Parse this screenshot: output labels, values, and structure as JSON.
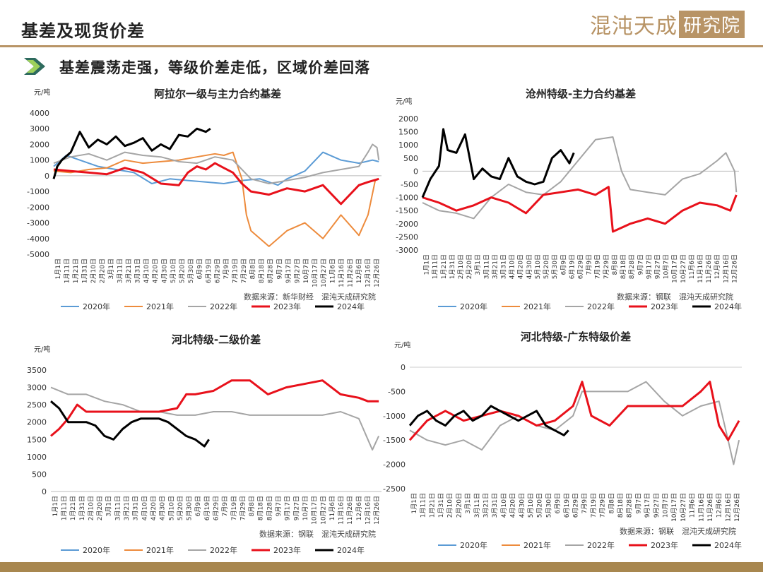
{
  "header": {
    "title": "基差及现货价差",
    "brand_part1": "混沌天成",
    "brand_part2": "研究院",
    "subtitle": "基差震荡走强，等级价差走低，区域价差回落"
  },
  "colors": {
    "2020年": "#5b9bd5",
    "2021年": "#ed8b3c",
    "2022年": "#a5a5a5",
    "2023年": "#e8111b",
    "2024年": "#000000",
    "accent": "#b89466"
  },
  "chart_data": [
    {
      "type": "line",
      "title": "阿拉尔一级与主力合约基差",
      "unit": "元/吨",
      "ylim": [
        -5000,
        4000
      ],
      "yticks": [
        4000,
        3000,
        2000,
        1000,
        0,
        -1000,
        -2000,
        -3000,
        -4000,
        -5000
      ],
      "xticks": [
        "1月1日",
        "1月11日",
        "1月21日",
        "1月31日",
        "2月10日",
        "2月20日",
        "3月1日",
        "3月11日",
        "3月21日",
        "3月31日",
        "4月10日",
        "4月20日",
        "4月30日",
        "5月10日",
        "5月20日",
        "5月30日",
        "6月9日",
        "6月19日",
        "6月29日",
        "7月9日",
        "7月19日",
        "7月29日",
        "8月8日",
        "8月18日",
        "8月28日",
        "9月7日",
        "9月17日",
        "9月27日",
        "10月7日",
        "10月17日",
        "10月27日",
        "11月6日",
        "11月16日",
        "11月26日",
        "12月6日",
        "12月16日",
        "12月26日"
      ],
      "source": "数据来源：新华财经　混沌天成研究院",
      "series": [
        {
          "name": "2020年",
          "x": [
            1,
            15,
            30,
            50,
            70,
            90,
            110,
            130,
            150,
            170,
            190,
            210,
            230,
            250,
            260,
            280,
            300,
            320,
            340,
            355,
            362
          ],
          "y": [
            600,
            1300,
            1000,
            600,
            400,
            200,
            -500,
            -200,
            -300,
            -400,
            -500,
            -300,
            -200,
            -600,
            -200,
            300,
            1500,
            1000,
            800,
            1000,
            900
          ]
        },
        {
          "name": "2021年",
          "x": [
            1,
            20,
            40,
            60,
            80,
            100,
            120,
            140,
            160,
            180,
            190,
            200,
            210,
            215,
            220,
            240,
            260,
            280,
            300,
            320,
            340,
            350,
            358,
            362
          ],
          "y": [
            300,
            200,
            400,
            500,
            1000,
            800,
            900,
            1000,
            1200,
            1400,
            1300,
            1500,
            -200,
            -2500,
            -3500,
            -4500,
            -3500,
            -3000,
            -4000,
            -2500,
            -3800,
            -2500,
            -300,
            -200
          ]
        },
        {
          "name": "2022年",
          "x": [
            1,
            20,
            40,
            60,
            80,
            100,
            120,
            140,
            160,
            180,
            200,
            220,
            240,
            260,
            280,
            300,
            320,
            340,
            350,
            355,
            360,
            362
          ],
          "y": [
            800,
            1200,
            1400,
            1000,
            1500,
            1300,
            1200,
            900,
            800,
            1200,
            1000,
            -200,
            -500,
            -300,
            -100,
            200,
            400,
            600,
            1500,
            2000,
            1800,
            1000
          ]
        },
        {
          "name": "2023年",
          "x": [
            1,
            20,
            40,
            60,
            80,
            100,
            120,
            140,
            150,
            160,
            170,
            180,
            190,
            200,
            210,
            220,
            240,
            260,
            280,
            300,
            320,
            340,
            350,
            362
          ],
          "y": [
            400,
            300,
            200,
            100,
            500,
            200,
            -500,
            -600,
            200,
            600,
            400,
            800,
            500,
            200,
            -500,
            -1000,
            -1200,
            -800,
            -1000,
            -600,
            -1800,
            -600,
            -400,
            -200
          ]
        },
        {
          "name": "2024年",
          "x": [
            1,
            5,
            10,
            20,
            30,
            40,
            50,
            60,
            70,
            80,
            90,
            100,
            110,
            120,
            130,
            140,
            150,
            160,
            170,
            175
          ],
          "y": [
            -200,
            600,
            1000,
            1500,
            2800,
            1800,
            2300,
            2000,
            2500,
            1900,
            2100,
            2400,
            1600,
            2000,
            1700,
            2600,
            2500,
            3000,
            2800,
            3000
          ]
        }
      ]
    },
    {
      "type": "line",
      "title": "沧州特级-主力合约基差",
      "unit": "元/吨",
      "ylim": [
        -3000,
        2000
      ],
      "yticks": [
        2000,
        1500,
        1000,
        500,
        0,
        -500,
        -1000,
        -1500,
        -2000,
        -2500,
        -3000
      ],
      "xticks": [
        "1月1日",
        "1月11日",
        "1月21日",
        "1月31日",
        "2月10日",
        "2月20日",
        "3月1日",
        "3月11日",
        "3月21日",
        "3月31日",
        "4月10日",
        "4月20日",
        "4月30日",
        "5月10日",
        "5月20日",
        "5月30日",
        "6月9日",
        "6月19日",
        "6月29日",
        "7月9日",
        "7月19日",
        "7月29日",
        "8月8日",
        "8月18日",
        "8月28日",
        "9月7日",
        "9月17日",
        "9月27日",
        "10月7日",
        "10月17日",
        "10月27日",
        "11月6日",
        "11月16日",
        "11月26日",
        "12月6日",
        "12月16日",
        "12月26日"
      ],
      "source": "数据来源：钢联　混沌天成研究院",
      "series": [
        {
          "name": "2020年",
          "x": [],
          "y": []
        },
        {
          "name": "2021年",
          "x": [],
          "y": []
        },
        {
          "name": "2022年",
          "x": [
            1,
            20,
            40,
            60,
            80,
            100,
            120,
            140,
            160,
            180,
            200,
            220,
            230,
            240,
            260,
            280,
            300,
            320,
            340,
            350,
            360,
            362
          ],
          "y": [
            -1200,
            -1500,
            -1600,
            -1800,
            -1000,
            -500,
            -800,
            -900,
            -400,
            400,
            1200,
            1300,
            0,
            -700,
            -800,
            -900,
            -300,
            -100,
            400,
            700,
            0,
            -800
          ]
        },
        {
          "name": "2023年",
          "x": [
            1,
            20,
            40,
            60,
            80,
            100,
            120,
            140,
            160,
            180,
            200,
            215,
            220,
            240,
            260,
            280,
            300,
            320,
            340,
            355,
            362
          ],
          "y": [
            -1000,
            -1200,
            -1500,
            -1300,
            -1000,
            -1200,
            -1600,
            -900,
            -800,
            -700,
            -900,
            -600,
            -2300,
            -2000,
            -1800,
            -2000,
            -1500,
            -1200,
            -1300,
            -1500,
            -900
          ]
        },
        {
          "name": "2024年",
          "x": [
            1,
            10,
            20,
            25,
            30,
            40,
            50,
            60,
            70,
            80,
            90,
            100,
            110,
            120,
            130,
            140,
            150,
            160,
            170,
            175
          ],
          "y": [
            -1000,
            -300,
            200,
            1600,
            800,
            700,
            1400,
            -300,
            100,
            -200,
            -300,
            500,
            -200,
            -400,
            -500,
            -400,
            500,
            800,
            300,
            700
          ]
        }
      ]
    },
    {
      "type": "line",
      "title": "河北特级-二级价差",
      "unit": "元/吨",
      "ylim": [
        0,
        3500
      ],
      "yticks": [
        3500,
        3000,
        2500,
        2000,
        1500,
        1000,
        500,
        0
      ],
      "xticks": [
        "1月1日",
        "1月11日",
        "1月21日",
        "1月31日",
        "2月10日",
        "2月20日",
        "3月1日",
        "3月11日",
        "3月21日",
        "3月31日",
        "4月10日",
        "4月20日",
        "4月30日",
        "5月10日",
        "5月20日",
        "5月30日",
        "6月9日",
        "6月19日",
        "6月29日",
        "7月9日",
        "7月19日",
        "7月29日",
        "8月8日",
        "8月18日",
        "8月28日",
        "9月7日",
        "9月17日",
        "9月27日",
        "10月7日",
        "10月17日",
        "10月27日",
        "11月6日",
        "11月16日",
        "11月26日",
        "12月6日",
        "12月16日",
        "12月26日"
      ],
      "source": "数据来源：钢联　混沌天成研究院",
      "series": [
        {
          "name": "2020年",
          "x": [],
          "y": []
        },
        {
          "name": "2021年",
          "x": [],
          "y": []
        },
        {
          "name": "2022年",
          "x": [
            1,
            20,
            40,
            60,
            80,
            100,
            120,
            140,
            160,
            180,
            200,
            220,
            240,
            260,
            280,
            300,
            320,
            340,
            350,
            355,
            362
          ],
          "y": [
            3000,
            2800,
            2800,
            2600,
            2500,
            2300,
            2300,
            2200,
            2200,
            2300,
            2300,
            2200,
            2200,
            2200,
            2200,
            2200,
            2300,
            2100,
            1500,
            1200,
            1600
          ]
        },
        {
          "name": "2023年",
          "x": [
            1,
            10,
            20,
            30,
            40,
            60,
            80,
            100,
            120,
            140,
            150,
            160,
            180,
            200,
            220,
            240,
            260,
            280,
            300,
            320,
            340,
            350,
            362
          ],
          "y": [
            1600,
            1800,
            2100,
            2500,
            2300,
            2300,
            2300,
            2300,
            2300,
            2400,
            2800,
            2800,
            2900,
            3200,
            3200,
            2800,
            3000,
            3100,
            3200,
            2800,
            2700,
            2600,
            2600
          ]
        },
        {
          "name": "2024年",
          "x": [
            1,
            10,
            20,
            30,
            40,
            50,
            60,
            70,
            80,
            90,
            100,
            110,
            120,
            130,
            140,
            150,
            160,
            165,
            170,
            175
          ],
          "y": [
            2600,
            2400,
            2000,
            2000,
            2000,
            1900,
            1600,
            1500,
            1800,
            2000,
            2100,
            2100,
            2100,
            2000,
            1800,
            1600,
            1500,
            1400,
            1300,
            1500
          ]
        }
      ]
    },
    {
      "type": "line",
      "title": "河北特级-广东特级价差",
      "unit": "元/吨",
      "ylim": [
        -2500,
        0
      ],
      "yticks": [
        0,
        -500,
        -1000,
        -1500,
        -2000,
        -2500
      ],
      "xticks": [
        "1月1日",
        "1月11日",
        "1月21日",
        "1月31日",
        "2月10日",
        "2月20日",
        "3月1日",
        "3月11日",
        "3月21日",
        "3月31日",
        "4月10日",
        "4月20日",
        "4月30日",
        "5月10日",
        "5月20日",
        "5月30日",
        "6月9日",
        "6月19日",
        "6月29日",
        "7月9日",
        "7月19日",
        "7月29日",
        "8月8日",
        "8月18日",
        "8月28日",
        "9月7日",
        "9月17日",
        "9月27日",
        "10月7日",
        "10月17日",
        "10月27日",
        "11月6日",
        "11月16日",
        "11月26日",
        "12月6日",
        "12月16日",
        "12月26日"
      ],
      "source": "数据来源：钢联　混沌天成研究院",
      "series": [
        {
          "name": "2020年",
          "x": [],
          "y": []
        },
        {
          "name": "2021年",
          "x": [],
          "y": []
        },
        {
          "name": "2022年",
          "x": [
            1,
            20,
            40,
            60,
            80,
            100,
            120,
            140,
            160,
            180,
            190,
            200,
            220,
            240,
            260,
            280,
            300,
            320,
            340,
            350,
            356,
            362
          ],
          "y": [
            -1300,
            -1500,
            -1600,
            -1500,
            -1700,
            -1200,
            -1000,
            -1200,
            -1300,
            -1000,
            -500,
            -500,
            -500,
            -500,
            -300,
            -700,
            -1000,
            -800,
            -700,
            -1500,
            -2000,
            -1500
          ]
        },
        {
          "name": "2023年",
          "x": [
            1,
            20,
            40,
            60,
            80,
            100,
            120,
            140,
            160,
            180,
            190,
            200,
            220,
            240,
            260,
            280,
            300,
            320,
            330,
            340,
            350,
            362
          ],
          "y": [
            -1500,
            -1100,
            -900,
            -1100,
            -1000,
            -900,
            -1000,
            -1200,
            -1100,
            -800,
            -300,
            -1000,
            -1200,
            -800,
            -800,
            -800,
            -800,
            -500,
            -300,
            -1200,
            -1500,
            -1100
          ]
        },
        {
          "name": "2024年",
          "x": [
            1,
            10,
            20,
            30,
            40,
            50,
            60,
            70,
            80,
            90,
            100,
            110,
            120,
            130,
            140,
            150,
            160,
            170,
            175
          ],
          "y": [
            -1200,
            -1000,
            -900,
            -1100,
            -1200,
            -1000,
            -900,
            -1100,
            -1000,
            -800,
            -900,
            -1000,
            -1100,
            -1000,
            -900,
            -1200,
            -1300,
            -1400,
            -1300
          ]
        }
      ]
    }
  ]
}
